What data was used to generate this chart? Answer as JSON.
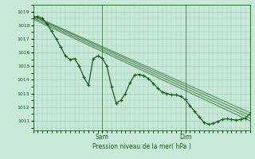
{
  "title": "Pression niveau de la mer( hPa )",
  "ylabel_vals": [
    1019,
    1018,
    1017,
    1016,
    1015,
    1014,
    1013,
    1012,
    1011
  ],
  "ylim": [
    1010.3,
    1019.5
  ],
  "xlim": [
    0,
    47
  ],
  "sam_x": 15,
  "dim_x": 33,
  "background_color": "#c8e8d8",
  "grid_color": "#a0ccb8",
  "line_color": "#1a5c1a",
  "text_color": "#1a5c1a",
  "straight_series": [
    [
      [
        0,
        1018.55
      ],
      [
        47,
        1011.2
      ]
    ],
    [
      [
        0,
        1018.45
      ],
      [
        47,
        1011.0
      ]
    ],
    [
      [
        0,
        1018.65
      ],
      [
        47,
        1011.4
      ]
    ],
    [
      [
        0,
        1018.7
      ],
      [
        47,
        1011.6
      ]
    ]
  ],
  "main_x": [
    0,
    1,
    2,
    3,
    4,
    5,
    6,
    7,
    8,
    9,
    10,
    11,
    12,
    13,
    14,
    15,
    16,
    17,
    18,
    19,
    20,
    21,
    22,
    23,
    24,
    25,
    26,
    27,
    28,
    29,
    30,
    31,
    32,
    33,
    34,
    35,
    36,
    37,
    38,
    39,
    40,
    41,
    42,
    43,
    44,
    45,
    46,
    47
  ],
  "main_y": [
    1018.55,
    1018.65,
    1018.5,
    1018.1,
    1017.55,
    1017.0,
    1016.4,
    1015.75,
    1015.5,
    1015.55,
    1015.0,
    1014.2,
    1013.6,
    1015.55,
    1015.75,
    1015.6,
    1015.0,
    1013.5,
    1012.3,
    1012.5,
    1013.0,
    1013.8,
    1014.35,
    1014.4,
    1014.3,
    1014.1,
    1013.75,
    1013.4,
    1013.1,
    1013.0,
    1012.9,
    1012.9,
    1012.8,
    1012.55,
    1012.1,
    1011.7,
    1011.3,
    1010.9,
    1010.75,
    1010.8,
    1010.95,
    1011.1,
    1011.15,
    1011.1,
    1011.05,
    1011.1,
    1011.2,
    1011.5
  ]
}
